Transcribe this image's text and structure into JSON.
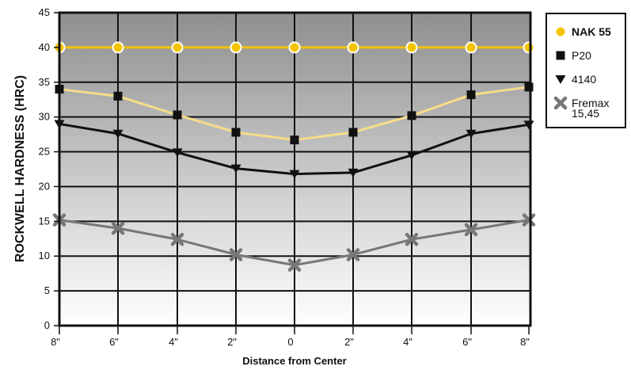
{
  "chart_data": {
    "type": "line",
    "title": "",
    "xlabel": "Distance from Center",
    "ylabel": "ROCKWELL HARDNESS (HRC)",
    "categories": [
      "8\"",
      "6\"",
      "4\"",
      "2\"",
      "0",
      "2\"",
      "4\"",
      "6\"",
      "8\""
    ],
    "yticks": [
      "0",
      "5",
      "10",
      "15",
      "20",
      "25",
      "30",
      "35",
      "40",
      "45"
    ],
    "ylim": [
      0,
      45
    ],
    "grid": true,
    "legend_position": "right",
    "series": [
      {
        "name": "NAK 55",
        "legend_label": [
          "NAK 55"
        ],
        "values": [
          40,
          40,
          40,
          40,
          40,
          40,
          40,
          40,
          40
        ],
        "color": "#f5c400",
        "line_color": "#f5c400",
        "marker": "circle",
        "bold": true
      },
      {
        "name": "P20",
        "legend_label": [
          "P20"
        ],
        "values": [
          34,
          33,
          30.3,
          27.8,
          26.7,
          27.8,
          30.2,
          33.2,
          34.3
        ],
        "color": "#111111",
        "line_color": "#f7dc8a",
        "marker": "square",
        "bold": false
      },
      {
        "name": "4140",
        "legend_label": [
          "4140"
        ],
        "values": [
          29,
          27.6,
          24.9,
          22.6,
          21.8,
          22,
          24.5,
          27.6,
          28.9
        ],
        "color": "#111111",
        "line_color": "#111111",
        "marker": "triangle-down",
        "bold": false
      },
      {
        "name": "Fremax 15,45",
        "legend_label": [
          "Fremax",
          "15,45"
        ],
        "values": [
          15.2,
          14,
          12.4,
          10.2,
          8.7,
          10.2,
          12.4,
          13.8,
          15.2
        ],
        "color": "#777777",
        "line_color": "#777777",
        "marker": "x",
        "bold": false
      }
    ]
  }
}
